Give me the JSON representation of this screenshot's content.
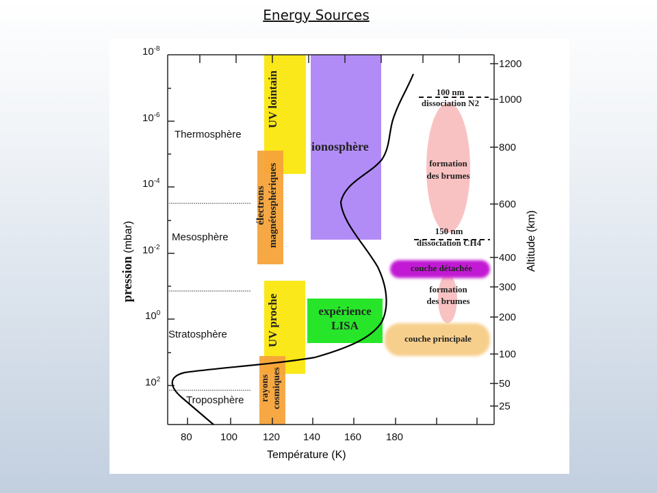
{
  "slide": {
    "title": "Energy Sources"
  },
  "diagram": {
    "y_left_label": "pression",
    "y_left_unit": "(mbar)",
    "y_right_label": "Altitude (km)",
    "x_label": "Température (K)",
    "x_ticks": [
      "80",
      "100",
      "120",
      "140",
      "160",
      "180"
    ],
    "pressure_ticks": [
      {
        "base": "10",
        "exp": "-8"
      },
      {
        "base": "10",
        "exp": "-6"
      },
      {
        "base": "10",
        "exp": "-4"
      },
      {
        "base": "10",
        "exp": "-2"
      },
      {
        "base": "10",
        "exp": "0"
      },
      {
        "base": "10",
        "exp": "2"
      }
    ],
    "altitude_ticks": [
      "1200",
      "1000",
      "800",
      "600",
      "400",
      "300",
      "200",
      "100",
      "50",
      "25"
    ],
    "layers": [
      "Thermosphère",
      "Mesosphère",
      "Stratosphère",
      "Troposphère"
    ],
    "sources": {
      "uv_far": "UV lointain",
      "electrons_1": "électrons",
      "electrons_2": "magnétosphériques",
      "ionosphere": "ionosphère",
      "uv_near": "UV proche",
      "cosmic_1": "rayons",
      "cosmic_2": "cosmiques",
      "lisa_1": "expérience",
      "lisa_2": "LISA"
    },
    "annotations": {
      "n2_1": "100 nm",
      "n2_2": "dissociation N2",
      "haze_upper_1": "formation",
      "haze_upper_2": "des brumes",
      "ch4_1": "150 nm",
      "ch4_2": "dissociation CH4",
      "detached": "couche détachée",
      "haze_lower_1": "formation",
      "haze_lower_2": "des brumes",
      "main_layer": "couche principale"
    },
    "colors": {
      "uv": "#fbe81a",
      "electrons": "#f6a33a",
      "ionosphere": "#b28cf6",
      "lisa": "#27e62a",
      "haze": "#f9c2c2",
      "detached": "#c21ad4",
      "main": "#f7cf8c"
    }
  }
}
